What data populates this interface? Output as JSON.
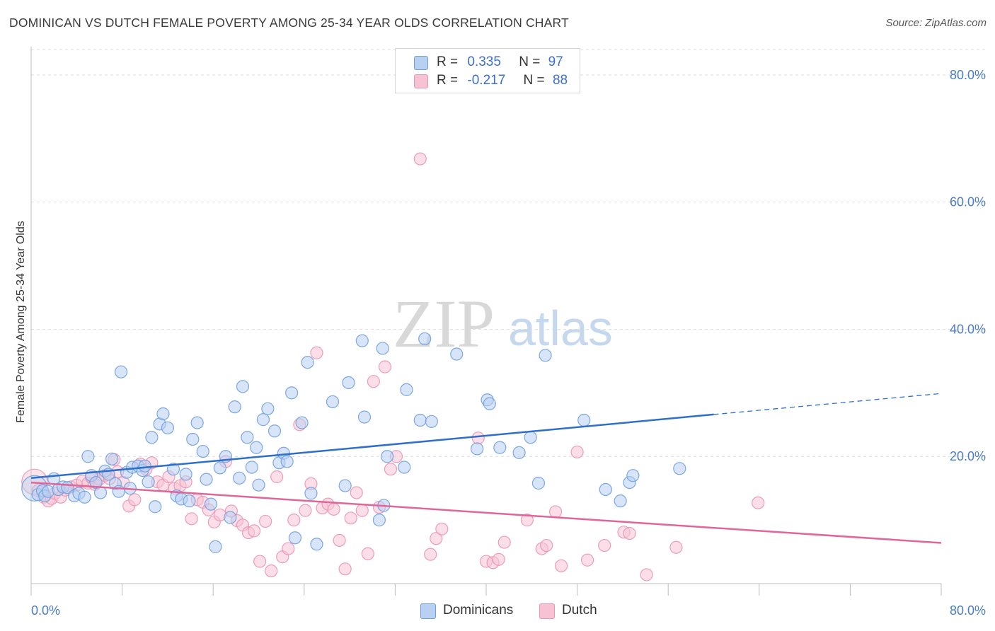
{
  "title": "DOMINICAN VS DUTCH FEMALE POVERTY AMONG 25-34 YEAR OLDS CORRELATION CHART",
  "source": "Source: ZipAtlas.com",
  "watermark": {
    "zip": "ZIP",
    "atlas": "atlas"
  },
  "colors": {
    "blue_fill": "#b8d0f2",
    "blue_stroke": "#6f9ee0",
    "blue_line": "#2f6fcc",
    "pink_fill": "#f7c3d4",
    "pink_stroke": "#e995b2",
    "pink_line": "#e0669a",
    "tick_text": "#4a7cc9",
    "grid": "#dcdcdc"
  },
  "legend_top": [
    {
      "r_label": "R =",
      "r_value": "0.335",
      "n_label": "N =",
      "n_value": "97"
    },
    {
      "r_label": "R =",
      "r_value": "-0.217",
      "n_label": "N =",
      "n_value": "88"
    }
  ],
  "legend_bottom": [
    "Dominicans",
    "Dutch"
  ],
  "chart_data": {
    "type": "scatter",
    "title": "DOMINICAN VS DUTCH FEMALE POVERTY AMONG 25-34 YEAR OLDS CORRELATION CHART",
    "xlabel": "",
    "ylabel": "Female Poverty Among 25-34 Year Olds",
    "xlim": [
      0,
      80
    ],
    "ylim": [
      0,
      84
    ],
    "x_tick_labels": [
      "0.0%",
      "80.0%"
    ],
    "y_ticks": [
      20,
      40,
      60,
      80
    ],
    "y_tick_labels": [
      "20.0%",
      "40.0%",
      "60.0%",
      "80.0%"
    ],
    "grid": true,
    "legend_position": "top-center",
    "series": [
      {
        "name": "Dominicans",
        "R": 0.335,
        "N": 97,
        "trend": {
          "x": [
            0,
            60
          ],
          "y": [
            16.6,
            26.6
          ],
          "dashed_to": [
            80,
            29.9
          ]
        },
        "points": [
          [
            0.3,
            15.0
          ],
          [
            0.6,
            14.0
          ],
          [
            1.0,
            14.6
          ],
          [
            1.2,
            13.8
          ],
          [
            1.5,
            14.5
          ],
          [
            2.0,
            16.5
          ],
          [
            2.4,
            14.8
          ],
          [
            2.8,
            15.2
          ],
          [
            3.2,
            15.1
          ],
          [
            3.8,
            13.8
          ],
          [
            4.2,
            14.2
          ],
          [
            4.7,
            13.6
          ],
          [
            5.0,
            20.0
          ],
          [
            5.3,
            17.0
          ],
          [
            5.7,
            15.9
          ],
          [
            6.1,
            14.3
          ],
          [
            6.5,
            17.7
          ],
          [
            6.8,
            17.2
          ],
          [
            7.1,
            19.6
          ],
          [
            7.4,
            15.7
          ],
          [
            7.7,
            14.5
          ],
          [
            7.9,
            33.3
          ],
          [
            8.4,
            17.5
          ],
          [
            8.7,
            15.0
          ],
          [
            8.9,
            18.3
          ],
          [
            9.4,
            18.5
          ],
          [
            9.8,
            17.8
          ],
          [
            10.0,
            18.5
          ],
          [
            10.3,
            16.0
          ],
          [
            10.6,
            23.0
          ],
          [
            10.9,
            12.1
          ],
          [
            11.3,
            25.1
          ],
          [
            11.6,
            26.7
          ],
          [
            12.0,
            24.5
          ],
          [
            12.5,
            18.0
          ],
          [
            12.8,
            13.8
          ],
          [
            13.2,
            13.3
          ],
          [
            13.6,
            17.2
          ],
          [
            13.9,
            13.0
          ],
          [
            14.2,
            22.7
          ],
          [
            14.6,
            25.3
          ],
          [
            15.1,
            20.8
          ],
          [
            15.4,
            16.4
          ],
          [
            15.8,
            12.5
          ],
          [
            16.2,
            5.8
          ],
          [
            16.6,
            18.2
          ],
          [
            17.1,
            20.0
          ],
          [
            17.5,
            10.4
          ],
          [
            17.9,
            27.8
          ],
          [
            18.3,
            16.6
          ],
          [
            18.6,
            31.0
          ],
          [
            19.0,
            23.0
          ],
          [
            19.4,
            18.3
          ],
          [
            19.8,
            21.4
          ],
          [
            20.0,
            15.5
          ],
          [
            20.4,
            25.8
          ],
          [
            20.8,
            27.5
          ],
          [
            21.4,
            24.0
          ],
          [
            21.8,
            19.0
          ],
          [
            22.2,
            20.5
          ],
          [
            22.5,
            19.2
          ],
          [
            22.9,
            30.0
          ],
          [
            23.2,
            7.2
          ],
          [
            23.8,
            25.3
          ],
          [
            24.3,
            34.8
          ],
          [
            24.6,
            14.2
          ],
          [
            25.1,
            6.2
          ],
          [
            26.5,
            28.6
          ],
          [
            27.6,
            15.4
          ],
          [
            27.9,
            31.6
          ],
          [
            29.1,
            38.2
          ],
          [
            29.3,
            26.2
          ],
          [
            30.6,
            10.0
          ],
          [
            30.9,
            37.0
          ],
          [
            31.0,
            12.3
          ],
          [
            31.3,
            20.0
          ],
          [
            32.8,
            18.3
          ],
          [
            33.0,
            30.5
          ],
          [
            34.2,
            25.7
          ],
          [
            34.6,
            38.5
          ],
          [
            35.2,
            25.5
          ],
          [
            37.4,
            36.1
          ],
          [
            39.2,
            21.2
          ],
          [
            40.1,
            28.9
          ],
          [
            40.3,
            28.3
          ],
          [
            41.2,
            21.4
          ],
          [
            42.9,
            20.6
          ],
          [
            43.9,
            23.0
          ],
          [
            44.6,
            15.8
          ],
          [
            45.2,
            35.9
          ],
          [
            48.6,
            25.7
          ],
          [
            50.5,
            14.8
          ],
          [
            51.8,
            13.0
          ],
          [
            52.6,
            15.9
          ],
          [
            52.9,
            17.0
          ],
          [
            57.0,
            18.1
          ]
        ]
      },
      {
        "name": "Dutch",
        "R": -0.217,
        "N": 88,
        "trend": {
          "x": [
            0,
            80
          ],
          "y": [
            15.9,
            6.4
          ]
        },
        "points": [
          [
            0.3,
            16.0
          ],
          [
            0.6,
            14.6
          ],
          [
            1.1,
            13.6
          ],
          [
            1.5,
            13.0
          ],
          [
            1.8,
            13.4
          ],
          [
            2.1,
            14.2
          ],
          [
            2.6,
            13.6
          ],
          [
            3.0,
            14.7
          ],
          [
            3.5,
            15.2
          ],
          [
            4.0,
            15.5
          ],
          [
            4.5,
            16.1
          ],
          [
            5.0,
            15.8
          ],
          [
            5.3,
            16.7
          ],
          [
            5.6,
            15.6
          ],
          [
            6.0,
            16.4
          ],
          [
            6.5,
            17.0
          ],
          [
            6.9,
            16.5
          ],
          [
            7.3,
            19.5
          ],
          [
            7.6,
            17.6
          ],
          [
            8.1,
            15.9
          ],
          [
            8.6,
            12.2
          ],
          [
            9.1,
            13.2
          ],
          [
            9.6,
            18.8
          ],
          [
            10.1,
            18.0
          ],
          [
            10.6,
            19.0
          ],
          [
            11.1,
            16.0
          ],
          [
            11.6,
            15.5
          ],
          [
            12.1,
            16.8
          ],
          [
            12.6,
            15.0
          ],
          [
            13.1,
            15.4
          ],
          [
            13.6,
            16.0
          ],
          [
            14.1,
            10.2
          ],
          [
            14.6,
            13.2
          ],
          [
            15.1,
            12.8
          ],
          [
            15.6,
            11.6
          ],
          [
            16.1,
            9.7
          ],
          [
            16.6,
            10.8
          ],
          [
            17.1,
            19.2
          ],
          [
            17.6,
            11.4
          ],
          [
            18.1,
            9.9
          ],
          [
            18.6,
            9.2
          ],
          [
            19.1,
            8.0
          ],
          [
            19.6,
            8.3
          ],
          [
            20.1,
            3.5
          ],
          [
            20.6,
            9.8
          ],
          [
            21.1,
            2.0
          ],
          [
            21.6,
            16.8
          ],
          [
            22.1,
            4.2
          ],
          [
            22.6,
            5.5
          ],
          [
            23.1,
            10.0
          ],
          [
            23.6,
            25.0
          ],
          [
            24.1,
            11.5
          ],
          [
            24.6,
            15.7
          ],
          [
            25.1,
            36.3
          ],
          [
            25.6,
            11.9
          ],
          [
            26.1,
            12.5
          ],
          [
            26.6,
            11.7
          ],
          [
            27.1,
            6.8
          ],
          [
            27.6,
            2.3
          ],
          [
            28.1,
            10.3
          ],
          [
            28.6,
            14.3
          ],
          [
            29.1,
            11.5
          ],
          [
            29.6,
            4.7
          ],
          [
            30.1,
            31.8
          ],
          [
            30.6,
            12.0
          ],
          [
            31.1,
            34.1
          ],
          [
            31.6,
            18.0
          ],
          [
            32.1,
            20.0
          ],
          [
            34.2,
            66.8
          ],
          [
            35.1,
            4.6
          ],
          [
            35.6,
            7.1
          ],
          [
            36.1,
            8.6
          ],
          [
            39.3,
            22.9
          ],
          [
            40.0,
            3.5
          ],
          [
            40.6,
            3.3
          ],
          [
            41.1,
            3.8
          ],
          [
            41.6,
            6.5
          ],
          [
            43.6,
            10.0
          ],
          [
            44.9,
            5.5
          ],
          [
            45.3,
            6.0
          ],
          [
            46.1,
            11.3
          ],
          [
            46.6,
            2.8
          ],
          [
            48.0,
            20.7
          ],
          [
            48.9,
            3.7
          ],
          [
            50.4,
            6.0
          ],
          [
            52.1,
            8.1
          ],
          [
            52.6,
            7.9
          ],
          [
            54.1,
            1.4
          ],
          [
            56.7,
            5.7
          ],
          [
            63.9,
            12.7
          ]
        ]
      }
    ]
  }
}
